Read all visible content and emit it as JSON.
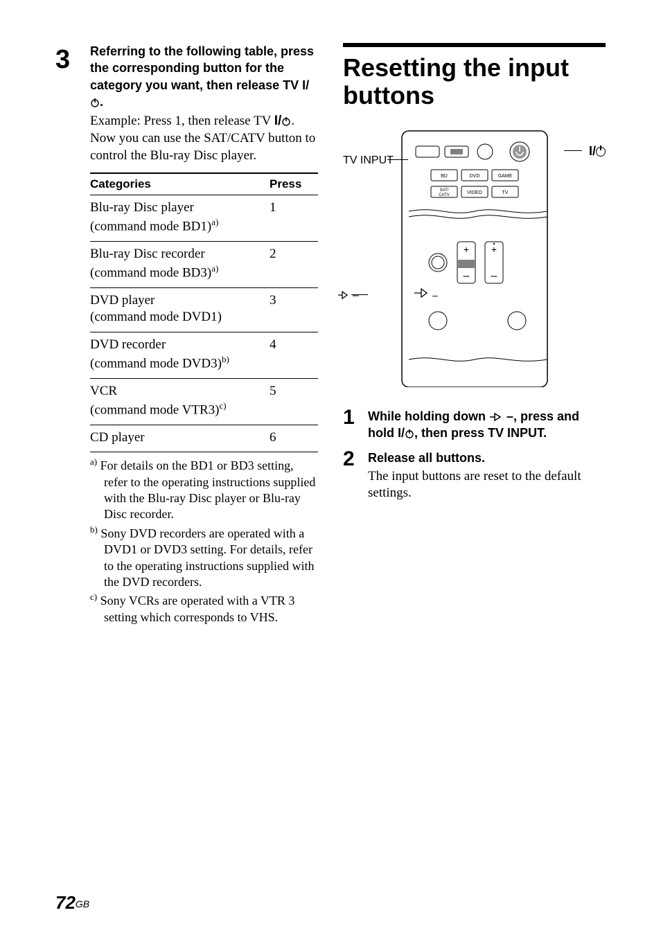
{
  "left": {
    "step_number": "3",
    "heading_line1": "Referring to the following table, press the corresponding button for the category you want, then release TV ",
    "heading_power_prefix": "I/",
    "heading_suffix": ".",
    "example_l1_pre": "Example: Press 1, then release TV ",
    "example_l1_power_prefix": "I/",
    "example_l1_suffix": ".",
    "example_l2": "Now you can use the SAT/CATV button to control the Blu-ray Disc player.",
    "table": {
      "col1": "Categories",
      "col2": "Press",
      "rows": [
        {
          "l1": "Blu-ray Disc player",
          "l2": "(command mode BD1)",
          "note": "a)",
          "press": "1"
        },
        {
          "l1": "Blu-ray Disc recorder",
          "l2": "(command mode BD3)",
          "note": "a)",
          "press": "2"
        },
        {
          "l1": "DVD player",
          "l2": "(command mode DVD1)",
          "note": "",
          "press": "3"
        },
        {
          "l1": "DVD recorder",
          "l2": "(command mode DVD3)",
          "note": "b)",
          "press": "4"
        },
        {
          "l1": "VCR",
          "l2": "(command mode VTR3)",
          "note": "c)",
          "press": "5"
        },
        {
          "l1": "CD player",
          "l2": "",
          "note": "",
          "press": "6"
        }
      ]
    },
    "footnotes": [
      {
        "mark": "a)",
        "text": "For details on the BD1 or BD3 setting, refer to the operating instructions supplied with the Blu-ray Disc player or Blu-ray Disc recorder."
      },
      {
        "mark": "b)",
        "text": "Sony DVD recorders are operated with a DVD1 or DVD3 setting. For details, refer to the operating instructions supplied with the DVD recorders."
      },
      {
        "mark": "c)",
        "text": "Sony VCRs are operated with a VTR 3 setting which corresponds to VHS."
      }
    ]
  },
  "right": {
    "title": "Resetting the input buttons",
    "label_tvinput": "TV INPUT",
    "label_power_prefix": "I/",
    "remote": {
      "buttons_row1": [
        "BD",
        "DVD",
        "GAME"
      ],
      "buttons_row2": [
        "SAT/\nCATV",
        "VIDEO",
        "TV"
      ]
    },
    "steps": [
      {
        "num": "1",
        "head_pre": "While holding down ",
        "head_mid": " –, press and hold ",
        "head_power_prefix": "I/",
        "head_post": ", then press TV INPUT."
      },
      {
        "num": "2",
        "head": "Release all buttons.",
        "body": "The input buttons are reset to the default settings."
      }
    ]
  },
  "page": {
    "number": "72",
    "region": "GB"
  }
}
